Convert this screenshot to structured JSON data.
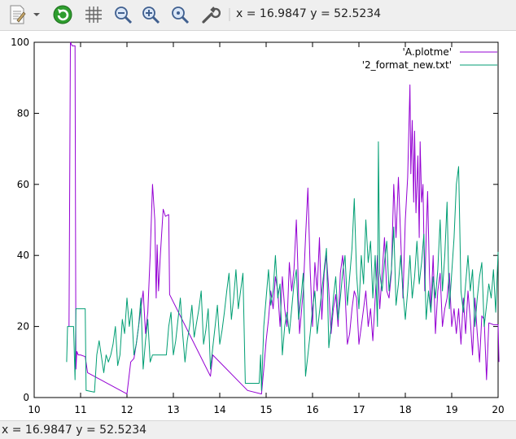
{
  "toolbar": {
    "coords_text": "x = 16.9847  y = 52.5234",
    "buttons": [
      {
        "name": "copy-clipboard-icon"
      },
      {
        "name": "dropdown-arrow-icon"
      },
      {
        "name": "replot-icon"
      },
      {
        "name": "grid-icon"
      },
      {
        "name": "zoom-out-icon"
      },
      {
        "name": "zoom-in-icon"
      },
      {
        "name": "zoom-reset-icon"
      },
      {
        "name": "settings-wrench-icon"
      }
    ]
  },
  "status": {
    "text": "x = 16.9847  y = 52.5234"
  },
  "colors": {
    "series1": "#9400d3",
    "series2": "#009e73"
  },
  "chart_data": {
    "type": "line",
    "title": "",
    "xlabel": "",
    "ylabel": "",
    "xlim": [
      10,
      20
    ],
    "ylim": [
      0,
      100
    ],
    "xticks": [
      "10",
      "11",
      "12",
      "13",
      "14",
      "15",
      "16",
      "17",
      "18",
      "19",
      "20"
    ],
    "yticks": [
      "0",
      "20",
      "40",
      "60",
      "80",
      "100"
    ],
    "legend_position": "top-right",
    "series": [
      {
        "name": "'A.plotme'",
        "color": "#9400d3",
        "points": [
          [
            10.75,
            20
          ],
          [
            10.78,
            100
          ],
          [
            10.82,
            99
          ],
          [
            10.88,
            99
          ],
          [
            10.9,
            8
          ],
          [
            10.92,
            13
          ],
          [
            10.95,
            12
          ],
          [
            11.0,
            12
          ],
          [
            11.1,
            11.5
          ],
          [
            11.15,
            7
          ],
          [
            12.0,
            1
          ],
          [
            12.08,
            10
          ],
          [
            12.15,
            11
          ],
          [
            12.2,
            15
          ],
          [
            12.3,
            25
          ],
          [
            12.35,
            30
          ],
          [
            12.4,
            18
          ],
          [
            12.45,
            24
          ],
          [
            12.5,
            40
          ],
          [
            12.55,
            60
          ],
          [
            12.6,
            50
          ],
          [
            12.63,
            28
          ],
          [
            12.65,
            43
          ],
          [
            12.68,
            30
          ],
          [
            12.72,
            40
          ],
          [
            12.78,
            53
          ],
          [
            12.83,
            51
          ],
          [
            12.9,
            51.5
          ],
          [
            12.92,
            29
          ],
          [
            13.8,
            6
          ],
          [
            13.85,
            12
          ],
          [
            14.6,
            2
          ],
          [
            14.9,
            1
          ],
          [
            14.95,
            8
          ],
          [
            15.0,
            16
          ],
          [
            15.05,
            22
          ],
          [
            15.1,
            30
          ],
          [
            15.15,
            25
          ],
          [
            15.2,
            34
          ],
          [
            15.25,
            30
          ],
          [
            15.3,
            20
          ],
          [
            15.35,
            34
          ],
          [
            15.4,
            25
          ],
          [
            15.45,
            20
          ],
          [
            15.5,
            38
          ],
          [
            15.55,
            30
          ],
          [
            15.6,
            36
          ],
          [
            15.65,
            50
          ],
          [
            15.68,
            38
          ],
          [
            15.72,
            18
          ],
          [
            15.8,
            30
          ],
          [
            15.85,
            45
          ],
          [
            15.9,
            59
          ],
          [
            15.95,
            36
          ],
          [
            16.0,
            20
          ],
          [
            16.05,
            38
          ],
          [
            16.1,
            30
          ],
          [
            16.15,
            45
          ],
          [
            16.2,
            22
          ],
          [
            16.25,
            35
          ],
          [
            16.3,
            40
          ],
          [
            16.35,
            30
          ],
          [
            16.4,
            18
          ],
          [
            16.45,
            25
          ],
          [
            16.5,
            29
          ],
          [
            16.55,
            20
          ],
          [
            16.6,
            35
          ],
          [
            16.65,
            40
          ],
          [
            16.7,
            30
          ],
          [
            16.75,
            15
          ],
          [
            16.8,
            18
          ],
          [
            16.85,
            25
          ],
          [
            16.9,
            30
          ],
          [
            16.95,
            28
          ],
          [
            17.0,
            15
          ],
          [
            17.05,
            20
          ],
          [
            17.1,
            25
          ],
          [
            17.15,
            30
          ],
          [
            17.2,
            20
          ],
          [
            17.25,
            25
          ],
          [
            17.3,
            16
          ],
          [
            17.35,
            28
          ],
          [
            17.4,
            40
          ],
          [
            17.45,
            25
          ],
          [
            17.5,
            35
          ],
          [
            17.55,
            45
          ],
          [
            17.6,
            30
          ],
          [
            17.65,
            28
          ],
          [
            17.7,
            35
          ],
          [
            17.75,
            60
          ],
          [
            17.8,
            45
          ],
          [
            17.85,
            62
          ],
          [
            17.9,
            45
          ],
          [
            17.95,
            28
          ],
          [
            18.0,
            50
          ],
          [
            18.05,
            62
          ],
          [
            18.1,
            88
          ],
          [
            18.12,
            63
          ],
          [
            18.15,
            78
          ],
          [
            18.18,
            55
          ],
          [
            18.2,
            75
          ],
          [
            18.23,
            52
          ],
          [
            18.27,
            68
          ],
          [
            18.3,
            45
          ],
          [
            18.32,
            72
          ],
          [
            18.35,
            55
          ],
          [
            18.38,
            60
          ],
          [
            18.42,
            30
          ],
          [
            18.45,
            45
          ],
          [
            18.48,
            58
          ],
          [
            18.52,
            35
          ],
          [
            18.55,
            25
          ],
          [
            18.6,
            40
          ],
          [
            18.65,
            18
          ],
          [
            18.7,
            30
          ],
          [
            18.75,
            35
          ],
          [
            18.8,
            20
          ],
          [
            18.85,
            25
          ],
          [
            18.9,
            28
          ],
          [
            18.95,
            35
          ],
          [
            19.0,
            20
          ],
          [
            19.05,
            25
          ],
          [
            19.1,
            18
          ],
          [
            19.15,
            25
          ],
          [
            19.2,
            15
          ],
          [
            19.25,
            28
          ],
          [
            19.3,
            18
          ],
          [
            19.35,
            30
          ],
          [
            19.4,
            22
          ],
          [
            19.45,
            12
          ],
          [
            19.5,
            28
          ],
          [
            19.55,
            18
          ],
          [
            19.6,
            10
          ],
          [
            19.65,
            23
          ],
          [
            19.7,
            22
          ],
          [
            19.75,
            5
          ],
          [
            19.8,
            21
          ],
          [
            19.9,
            20.5
          ],
          [
            20.0,
            20.5
          ],
          [
            20.02,
            10
          ]
        ]
      },
      {
        "name": "'2_format_new.txt'",
        "color": "#009e73",
        "points": [
          [
            10.7,
            10
          ],
          [
            10.72,
            20
          ],
          [
            10.85,
            20
          ],
          [
            10.88,
            5
          ],
          [
            10.9,
            25
          ],
          [
            11.1,
            25
          ],
          [
            11.12,
            2
          ],
          [
            11.3,
            1.5
          ],
          [
            11.35,
            12
          ],
          [
            11.4,
            16
          ],
          [
            11.5,
            7
          ],
          [
            11.55,
            12
          ],
          [
            11.6,
            10
          ],
          [
            11.65,
            12
          ],
          [
            11.7,
            15
          ],
          [
            11.75,
            20
          ],
          [
            11.8,
            9
          ],
          [
            11.85,
            12
          ],
          [
            11.9,
            22
          ],
          [
            11.95,
            18
          ],
          [
            12.0,
            28
          ],
          [
            12.05,
            20
          ],
          [
            12.1,
            25
          ],
          [
            12.15,
            12
          ],
          [
            12.2,
            15
          ],
          [
            12.25,
            20
          ],
          [
            12.3,
            28
          ],
          [
            12.35,
            8
          ],
          [
            12.4,
            16
          ],
          [
            12.45,
            22
          ],
          [
            12.5,
            10
          ],
          [
            12.55,
            12
          ],
          [
            12.85,
            12
          ],
          [
            12.9,
            20
          ],
          [
            12.95,
            24
          ],
          [
            13.0,
            12
          ],
          [
            13.05,
            16
          ],
          [
            13.1,
            22
          ],
          [
            13.15,
            28
          ],
          [
            13.2,
            18
          ],
          [
            13.25,
            10
          ],
          [
            13.3,
            16
          ],
          [
            13.35,
            20
          ],
          [
            13.4,
            26
          ],
          [
            13.45,
            17
          ],
          [
            13.5,
            21
          ],
          [
            13.55,
            25
          ],
          [
            13.6,
            30
          ],
          [
            13.65,
            15
          ],
          [
            13.7,
            19
          ],
          [
            13.75,
            25
          ],
          [
            13.8,
            8
          ],
          [
            13.85,
            14
          ],
          [
            13.9,
            20
          ],
          [
            13.95,
            26
          ],
          [
            14.0,
            15
          ],
          [
            14.05,
            19
          ],
          [
            14.1,
            24
          ],
          [
            14.15,
            30
          ],
          [
            14.2,
            35
          ],
          [
            14.25,
            22
          ],
          [
            14.3,
            28
          ],
          [
            14.35,
            36
          ],
          [
            14.4,
            25
          ],
          [
            14.45,
            30
          ],
          [
            14.5,
            35
          ],
          [
            14.55,
            4
          ],
          [
            14.85,
            4
          ],
          [
            14.88,
            12
          ],
          [
            14.9,
            2
          ],
          [
            14.95,
            20
          ],
          [
            15.0,
            28
          ],
          [
            15.05,
            36
          ],
          [
            15.1,
            26
          ],
          [
            15.15,
            30
          ],
          [
            15.2,
            40
          ],
          [
            15.25,
            28
          ],
          [
            15.3,
            32
          ],
          [
            15.35,
            12
          ],
          [
            15.4,
            20
          ],
          [
            15.45,
            24
          ],
          [
            15.5,
            18
          ],
          [
            15.55,
            25
          ],
          [
            15.6,
            32
          ],
          [
            15.65,
            36
          ],
          [
            15.7,
            22
          ],
          [
            15.75,
            28
          ],
          [
            15.8,
            35
          ],
          [
            15.85,
            6
          ],
          [
            15.9,
            12
          ],
          [
            15.95,
            18
          ],
          [
            16.0,
            25
          ],
          [
            16.05,
            30
          ],
          [
            16.1,
            18
          ],
          [
            16.15,
            24
          ],
          [
            16.2,
            30
          ],
          [
            16.25,
            36
          ],
          [
            16.3,
            42
          ],
          [
            16.35,
            14
          ],
          [
            16.4,
            20
          ],
          [
            16.45,
            28
          ],
          [
            16.5,
            34
          ],
          [
            16.55,
            22
          ],
          [
            16.6,
            28
          ],
          [
            16.65,
            35
          ],
          [
            16.7,
            40
          ],
          [
            16.75,
            26
          ],
          [
            16.8,
            34
          ],
          [
            16.85,
            42
          ],
          [
            16.9,
            56
          ],
          [
            16.95,
            35
          ],
          [
            17.0,
            25
          ],
          [
            17.05,
            40
          ],
          [
            17.1,
            32
          ],
          [
            17.15,
            50
          ],
          [
            17.2,
            38
          ],
          [
            17.25,
            44
          ],
          [
            17.3,
            28
          ],
          [
            17.35,
            40
          ],
          [
            17.4,
            20
          ],
          [
            17.42,
            72
          ],
          [
            17.45,
            35
          ],
          [
            17.5,
            30
          ],
          [
            17.55,
            38
          ],
          [
            17.6,
            44
          ],
          [
            17.65,
            30
          ],
          [
            17.7,
            36
          ],
          [
            17.75,
            48
          ],
          [
            17.8,
            26
          ],
          [
            17.85,
            32
          ],
          [
            17.9,
            40
          ],
          [
            17.95,
            30
          ],
          [
            18.0,
            22
          ],
          [
            18.05,
            30
          ],
          [
            18.1,
            40
          ],
          [
            18.15,
            28
          ],
          [
            18.2,
            34
          ],
          [
            18.25,
            44
          ],
          [
            18.3,
            32
          ],
          [
            18.35,
            38
          ],
          [
            18.4,
            46
          ],
          [
            18.45,
            22
          ],
          [
            18.5,
            30
          ],
          [
            18.55,
            24
          ],
          [
            18.6,
            34
          ],
          [
            18.65,
            28
          ],
          [
            18.7,
            36
          ],
          [
            18.75,
            50
          ],
          [
            18.8,
            30
          ],
          [
            18.85,
            40
          ],
          [
            18.9,
            55
          ],
          [
            18.95,
            25
          ],
          [
            19.0,
            35
          ],
          [
            19.05,
            45
          ],
          [
            19.1,
            60
          ],
          [
            19.15,
            65
          ],
          [
            19.2,
            30
          ],
          [
            19.25,
            24
          ],
          [
            19.3,
            32
          ],
          [
            19.35,
            40
          ],
          [
            19.4,
            30
          ],
          [
            19.45,
            36
          ],
          [
            19.5,
            20
          ],
          [
            19.55,
            28
          ],
          [
            19.6,
            34
          ],
          [
            19.65,
            38
          ],
          [
            19.7,
            20
          ],
          [
            19.75,
            26
          ],
          [
            19.8,
            32
          ],
          [
            19.85,
            28
          ],
          [
            19.9,
            36
          ],
          [
            19.95,
            24
          ],
          [
            20.0,
            41
          ]
        ]
      }
    ]
  }
}
